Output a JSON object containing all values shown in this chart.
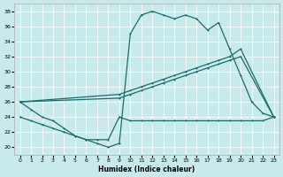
{
  "xlabel": "Humidex (Indice chaleur)",
  "xlim": [
    -0.5,
    23.5
  ],
  "ylim": [
    19,
    39
  ],
  "yticks": [
    20,
    22,
    24,
    26,
    28,
    30,
    32,
    34,
    36,
    38
  ],
  "xticks": [
    0,
    1,
    2,
    3,
    4,
    5,
    6,
    7,
    8,
    9,
    10,
    11,
    12,
    13,
    14,
    15,
    16,
    17,
    18,
    19,
    20,
    21,
    22,
    23
  ],
  "bg_color": "#c8eaea",
  "line_color": "#1a6b6b",
  "grid_color": "#ffffff",
  "line1_x": [
    0,
    1,
    2,
    3,
    4,
    5,
    6,
    7,
    8,
    9,
    10,
    11,
    12,
    13,
    14,
    15,
    16,
    17,
    18,
    19,
    20,
    21,
    22,
    23
  ],
  "line1_y": [
    26,
    25,
    24,
    23.5,
    22.5,
    21.5,
    21,
    20.5,
    20,
    20.5,
    35,
    37.5,
    38,
    37.5,
    37,
    37.5,
    37,
    35.5,
    36.5,
    33,
    29.5,
    26,
    24.5,
    24
  ],
  "line2_x": [
    0,
    9,
    10,
    11,
    12,
    13,
    14,
    15,
    16,
    17,
    18,
    19,
    20,
    23
  ],
  "line2_y": [
    26,
    27,
    27.5,
    28,
    28.5,
    29,
    29.5,
    30,
    30.5,
    31,
    31.5,
    32,
    33,
    24
  ],
  "line3_x": [
    0,
    9,
    10,
    11,
    12,
    13,
    14,
    15,
    16,
    17,
    18,
    19,
    20,
    23
  ],
  "line3_y": [
    26,
    26.5,
    27,
    27.5,
    28,
    28.5,
    29,
    29.5,
    30,
    30.5,
    31,
    31.5,
    32,
    24
  ],
  "line4_x": [
    0,
    1,
    2,
    3,
    4,
    5,
    6,
    7,
    8,
    9,
    10,
    11,
    12,
    13,
    14,
    15,
    16,
    17,
    18,
    19,
    20,
    21,
    22,
    23
  ],
  "line4_y": [
    24,
    23.5,
    23,
    22.5,
    22,
    21.5,
    21,
    21,
    21,
    24,
    23.5,
    23.5,
    23.5,
    23.5,
    23.5,
    23.5,
    23.5,
    23.5,
    23.5,
    23.5,
    23.5,
    23.5,
    23.5,
    24
  ]
}
